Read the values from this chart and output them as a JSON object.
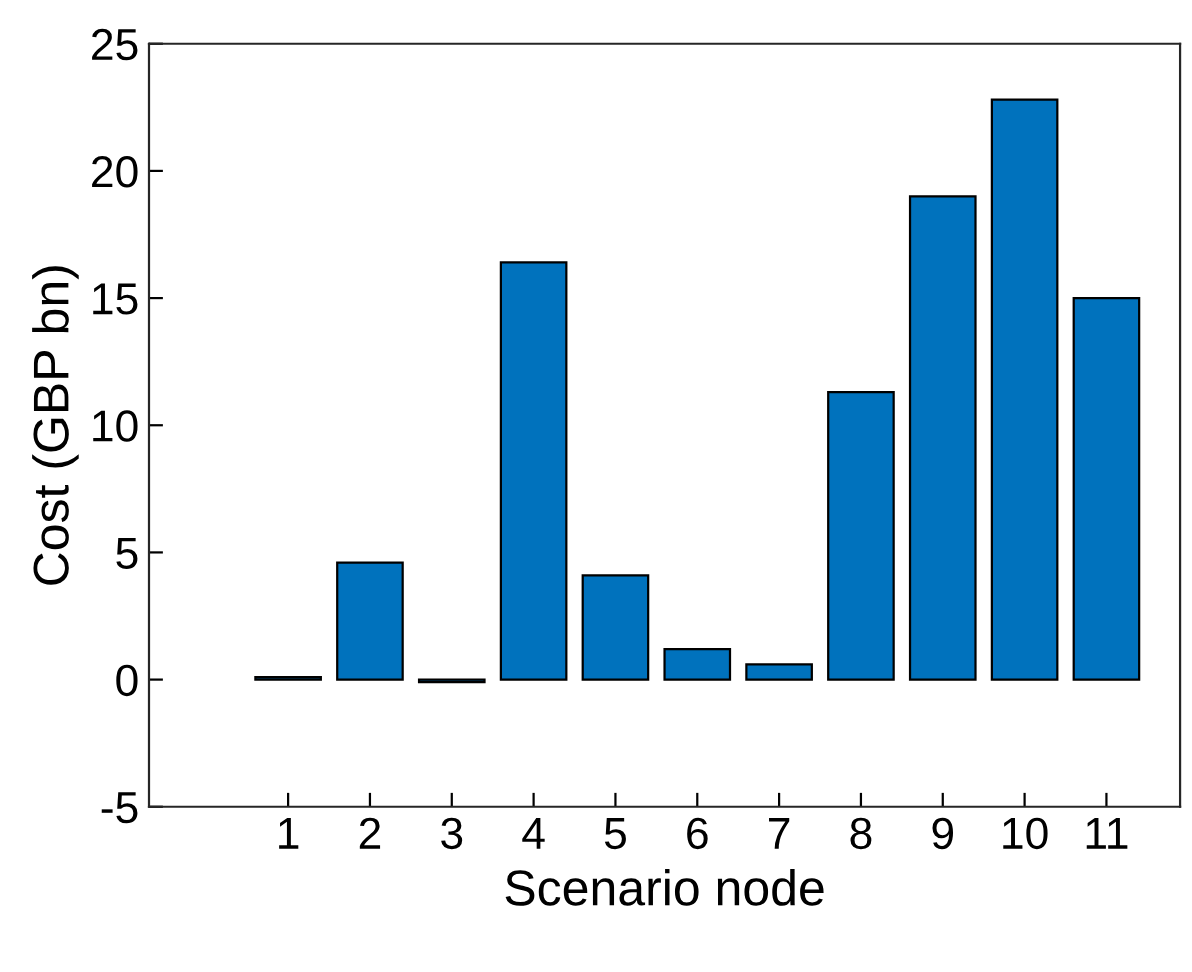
{
  "chart_data": {
    "type": "bar",
    "xlabel": "Scenario node",
    "ylabel": "Cost (GBP bn)",
    "x": [
      1,
      2,
      3,
      4,
      5,
      6,
      7,
      8,
      9,
      10,
      11
    ],
    "values": [
      0.1,
      4.6,
      -0.1,
      16.4,
      4.1,
      1.2,
      0.6,
      11.3,
      19.0,
      22.8,
      15.0
    ],
    "color": "#0072bd",
    "xlim": [
      -0.7,
      11.9
    ],
    "xticks": [
      1,
      2,
      3,
      4,
      5,
      6,
      7,
      8,
      9,
      10,
      11
    ],
    "ylim": [
      -5,
      25
    ],
    "yticks": [
      -5,
      0,
      5,
      10,
      15,
      20,
      25
    ],
    "grid": false
  }
}
